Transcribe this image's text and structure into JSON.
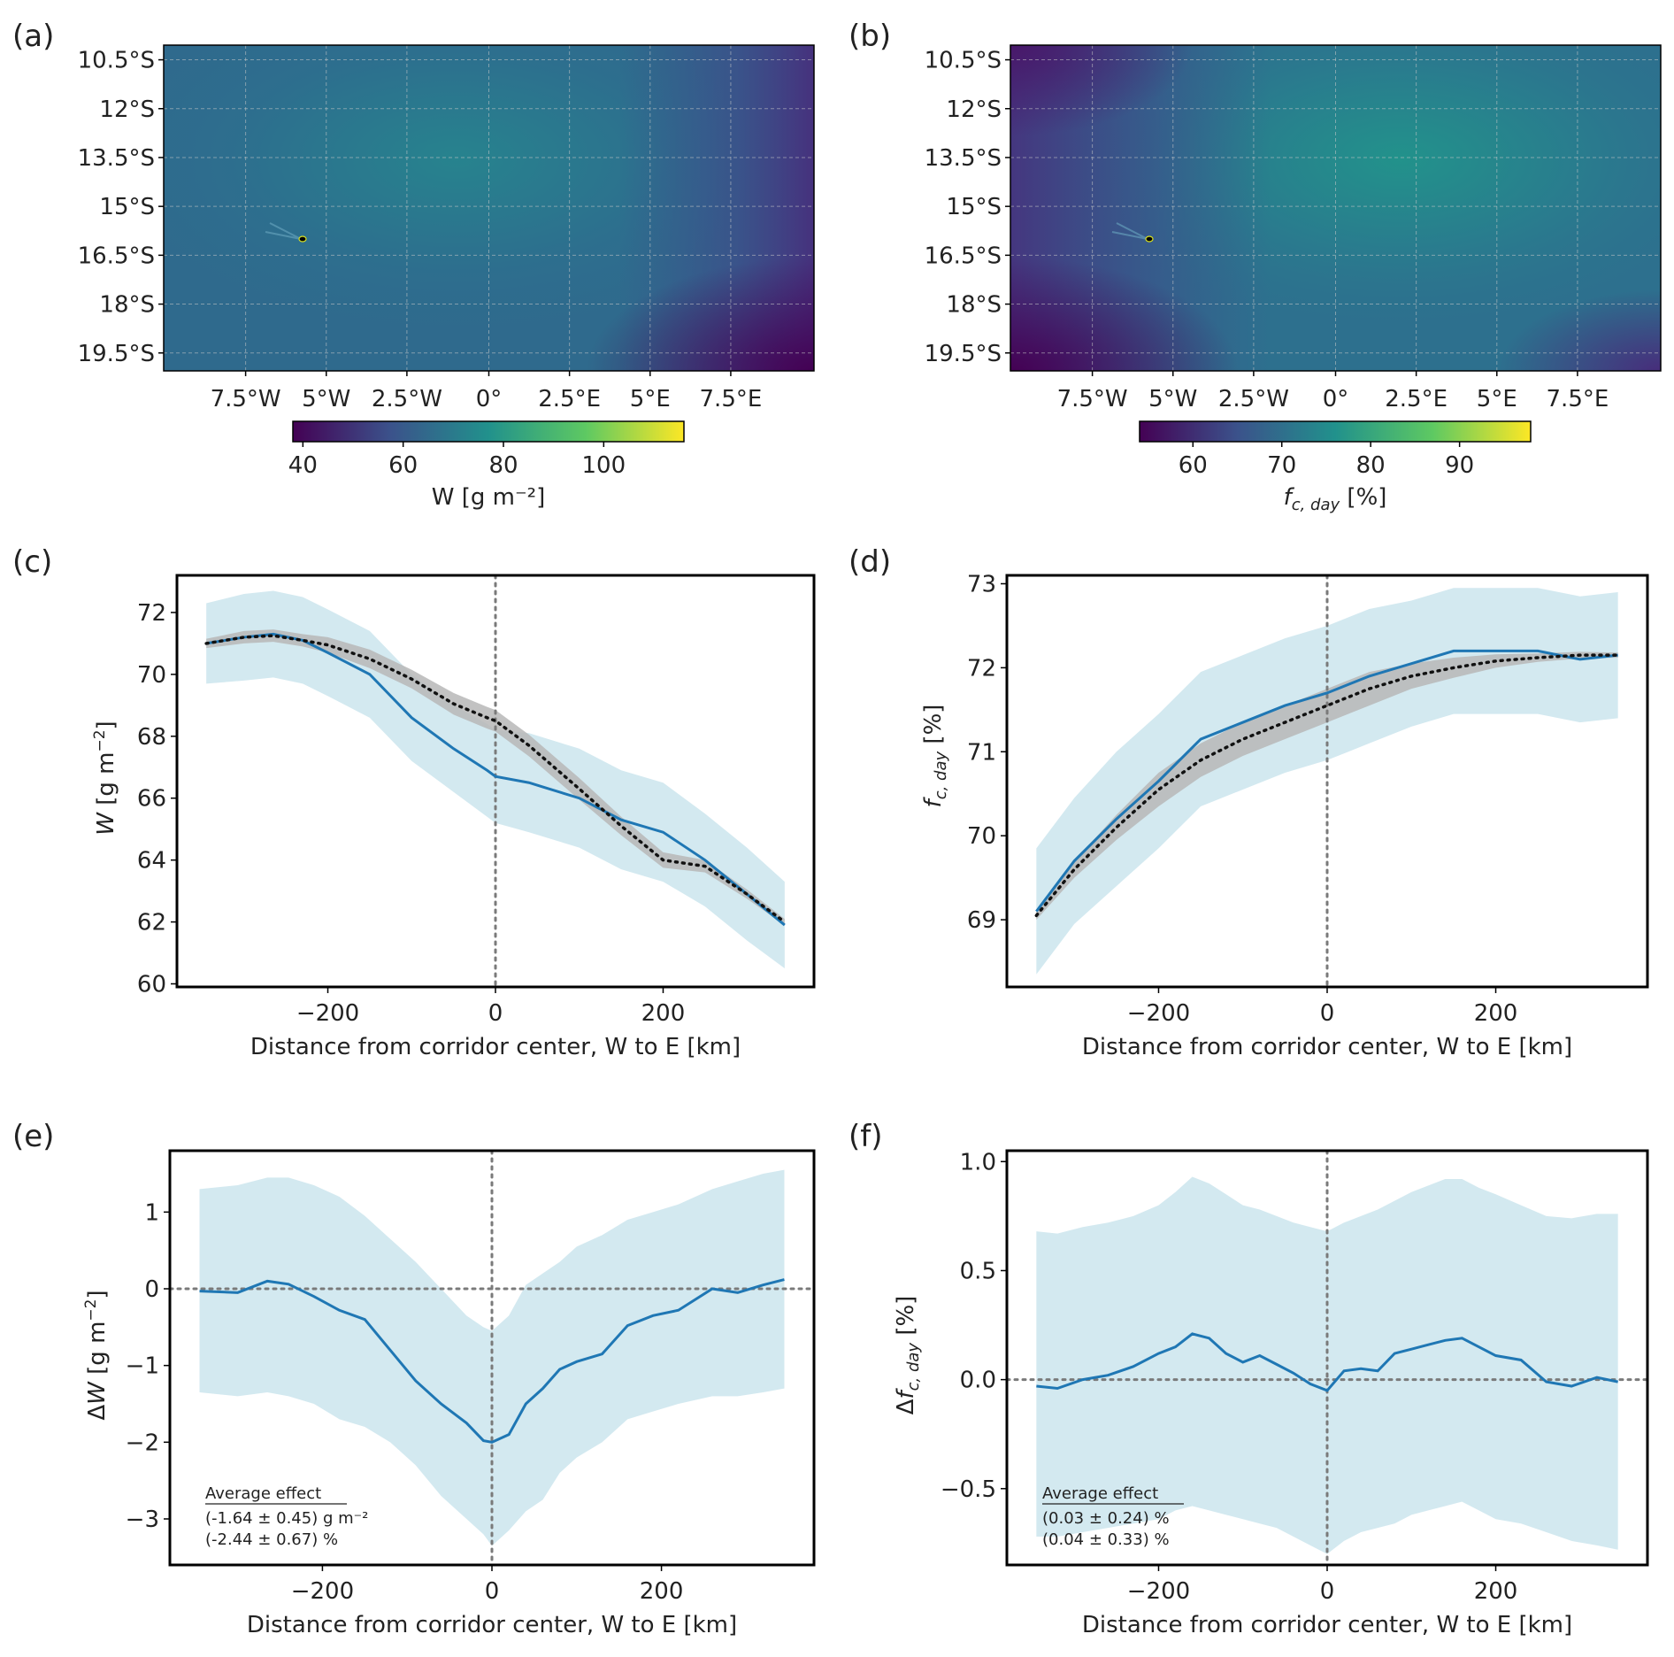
{
  "panel_labels": [
    "(a)",
    "(b)",
    "(c)",
    "(d)",
    "(e)",
    "(f)"
  ],
  "maps": [
    {
      "y_ticks": [
        "10.5°S",
        "12°S",
        "13.5°S",
        "15°S",
        "16.5°S",
        "18°S",
        "19.5°S"
      ],
      "x_ticks": [
        "7.5°W",
        "5°W",
        "2.5°W",
        "0°",
        "2.5°E",
        "5°E",
        "7.5°E"
      ],
      "colorbar_ticks": [
        "40",
        "60",
        "80",
        "100"
      ],
      "colorbar_label": "W [g m⁻²]",
      "colorbar_range": [
        38,
        116
      ]
    },
    {
      "y_ticks": [
        "10.5°S",
        "12°S",
        "13.5°S",
        "15°S",
        "16.5°S",
        "18°S",
        "19.5°S"
      ],
      "x_ticks": [
        "7.5°W",
        "5°W",
        "2.5°W",
        "0°",
        "2.5°E",
        "5°E",
        "7.5°E"
      ],
      "colorbar_ticks": [
        "60",
        "70",
        "80",
        "90"
      ],
      "colorbar_label": "f_c,day [%]",
      "colorbar_range": [
        54,
        98
      ]
    }
  ],
  "chart_data": [
    {
      "panel": "(c)",
      "type": "line",
      "xlabel": "Distance from corridor center, W to E [km]",
      "ylabel": "W [g m⁻²]",
      "xlim": [
        -380,
        380
      ],
      "ylim": [
        59.9,
        73.2
      ],
      "xticks": [
        -200,
        0,
        200
      ],
      "yticks": [
        60,
        62,
        64,
        66,
        68,
        70,
        72
      ],
      "vline": 0,
      "x": [
        -345,
        -300,
        -265,
        -230,
        -200,
        -150,
        -100,
        -50,
        -10,
        0,
        40,
        100,
        150,
        200,
        250,
        300,
        345
      ],
      "observed": [
        71.0,
        71.2,
        71.3,
        71.1,
        70.7,
        70.0,
        68.6,
        67.6,
        66.9,
        66.7,
        66.5,
        66.0,
        65.3,
        64.9,
        64.0,
        62.9,
        61.9
      ],
      "observed_band": [
        1.3,
        1.4,
        1.4,
        1.4,
        1.4,
        1.4,
        1.4,
        1.4,
        1.5,
        1.5,
        1.6,
        1.6,
        1.6,
        1.6,
        1.5,
        1.5,
        1.4
      ],
      "fit": [
        71.0,
        71.2,
        71.25,
        71.1,
        70.95,
        70.5,
        69.85,
        69.05,
        68.6,
        68.5,
        67.7,
        66.3,
        65.1,
        64.0,
        63.8,
        62.9,
        62.0
      ],
      "fit_band": [
        0.15,
        0.2,
        0.2,
        0.2,
        0.25,
        0.3,
        0.3,
        0.35,
        0.35,
        0.35,
        0.35,
        0.35,
        0.3,
        0.25,
        0.2,
        0.15,
        0.1
      ]
    },
    {
      "panel": "(d)",
      "type": "line",
      "xlabel": "Distance from corridor center, W to E [km]",
      "ylabel": "f_c,day [%]",
      "xlim": [
        -380,
        380
      ],
      "ylim": [
        68.2,
        73.1
      ],
      "xticks": [
        -200,
        0,
        200
      ],
      "yticks": [
        69,
        70,
        71,
        72,
        73
      ],
      "vline": 0,
      "x": [
        -345,
        -300,
        -250,
        -200,
        -150,
        -100,
        -50,
        0,
        50,
        100,
        150,
        200,
        250,
        300,
        345
      ],
      "observed": [
        69.1,
        69.7,
        70.2,
        70.65,
        71.15,
        71.35,
        71.55,
        71.7,
        71.9,
        72.05,
        72.2,
        72.2,
        72.2,
        72.1,
        72.15
      ],
      "observed_band": [
        0.75,
        0.75,
        0.8,
        0.8,
        0.8,
        0.8,
        0.8,
        0.8,
        0.8,
        0.75,
        0.75,
        0.75,
        0.75,
        0.75,
        0.75
      ],
      "fit": [
        69.05,
        69.6,
        70.1,
        70.55,
        70.9,
        71.15,
        71.35,
        71.55,
        71.75,
        71.9,
        72.0,
        72.08,
        72.12,
        72.15,
        72.15
      ],
      "fit_band": [
        0.05,
        0.1,
        0.15,
        0.2,
        0.2,
        0.2,
        0.2,
        0.2,
        0.2,
        0.15,
        0.12,
        0.08,
        0.05,
        0.04,
        0.03
      ]
    },
    {
      "panel": "(e)",
      "type": "line",
      "xlabel": "Distance from corridor center, W to E [km]",
      "ylabel": "ΔW [g m⁻²]",
      "xlim": [
        -380,
        380
      ],
      "ylim": [
        -3.6,
        1.8
      ],
      "xticks": [
        -200,
        0,
        200
      ],
      "yticks": [
        -3,
        -2,
        -1,
        0,
        1
      ],
      "vline": 0,
      "hline": 0,
      "x": [
        -345,
        -300,
        -265,
        -240,
        -210,
        -180,
        -150,
        -120,
        -90,
        -60,
        -30,
        -10,
        0,
        20,
        40,
        60,
        80,
        100,
        130,
        160,
        190,
        220,
        260,
        290,
        320,
        345
      ],
      "values": [
        -0.03,
        -0.05,
        0.1,
        0.06,
        -0.1,
        -0.28,
        -0.4,
        -0.8,
        -1.2,
        -1.5,
        -1.75,
        -1.98,
        -2.0,
        -1.9,
        -1.5,
        -1.3,
        -1.05,
        -0.95,
        -0.85,
        -0.48,
        -0.35,
        -0.28,
        0.0,
        -0.05,
        0.05,
        0.12
      ],
      "upper": [
        1.3,
        1.35,
        1.45,
        1.45,
        1.35,
        1.2,
        0.95,
        0.65,
        0.35,
        0.0,
        -0.35,
        -0.5,
        -0.55,
        -0.35,
        0.05,
        0.2,
        0.35,
        0.55,
        0.7,
        0.9,
        1.0,
        1.1,
        1.3,
        1.4,
        1.5,
        1.55
      ],
      "lower": [
        -1.35,
        -1.4,
        -1.35,
        -1.4,
        -1.5,
        -1.7,
        -1.8,
        -2.0,
        -2.3,
        -2.7,
        -3.0,
        -3.2,
        -3.35,
        -3.15,
        -2.9,
        -2.75,
        -2.4,
        -2.2,
        -2.0,
        -1.7,
        -1.6,
        -1.5,
        -1.4,
        -1.4,
        -1.35,
        -1.3
      ],
      "annotation": {
        "heading": "Average effect",
        "line1": "(-1.64 ± 0.45) g m⁻²",
        "line2": "(-2.44 ± 0.67) %"
      }
    },
    {
      "panel": "(f)",
      "type": "line",
      "xlabel": "Distance from corridor center, W to E [km]",
      "ylabel": "Δf_c,day [%]",
      "xlim": [
        -380,
        380
      ],
      "ylim": [
        -0.85,
        1.05
      ],
      "xticks": [
        -200,
        0,
        200
      ],
      "yticks": [
        -0.5,
        0.0,
        0.5,
        1.0
      ],
      "yticklabels": [
        "−0.5",
        "0.0",
        "0.5",
        "1.0"
      ],
      "vline": 0,
      "hline": 0,
      "x": [
        -345,
        -320,
        -290,
        -260,
        -230,
        -200,
        -180,
        -160,
        -140,
        -120,
        -100,
        -80,
        -60,
        -40,
        -20,
        0,
        20,
        40,
        60,
        80,
        100,
        120,
        140,
        160,
        180,
        200,
        230,
        260,
        290,
        320,
        345
      ],
      "values": [
        -0.03,
        -0.04,
        0.0,
        0.02,
        0.06,
        0.12,
        0.15,
        0.21,
        0.19,
        0.12,
        0.08,
        0.11,
        0.07,
        0.03,
        -0.02,
        -0.05,
        0.04,
        0.05,
        0.04,
        0.12,
        0.14,
        0.16,
        0.18,
        0.19,
        0.15,
        0.11,
        0.09,
        -0.01,
        -0.03,
        0.01,
        -0.01
      ],
      "upper": [
        0.68,
        0.67,
        0.7,
        0.72,
        0.75,
        0.8,
        0.86,
        0.93,
        0.9,
        0.85,
        0.8,
        0.78,
        0.75,
        0.72,
        0.7,
        0.68,
        0.72,
        0.75,
        0.78,
        0.82,
        0.86,
        0.89,
        0.92,
        0.92,
        0.88,
        0.85,
        0.8,
        0.75,
        0.74,
        0.76,
        0.76
      ],
      "lower": [
        -0.72,
        -0.72,
        -0.7,
        -0.68,
        -0.66,
        -0.64,
        -0.6,
        -0.58,
        -0.6,
        -0.62,
        -0.64,
        -0.66,
        -0.68,
        -0.72,
        -0.76,
        -0.8,
        -0.74,
        -0.7,
        -0.68,
        -0.66,
        -0.62,
        -0.6,
        -0.58,
        -0.56,
        -0.6,
        -0.64,
        -0.66,
        -0.7,
        -0.74,
        -0.76,
        -0.78
      ],
      "annotation": {
        "heading": "Average effect",
        "line1": "(0.03 ± 0.24) %",
        "line2": "(0.04 ± 0.33) %"
      }
    }
  ],
  "colors": {
    "line": "#1f77b4",
    "band": "#d3e9f0",
    "fit_band": "#b7b7b7",
    "ref_line": "#7a7a7a",
    "fit_line": "#111111",
    "viridis": [
      "#440154",
      "#3b528b",
      "#21918c",
      "#5ec962",
      "#fde725"
    ]
  }
}
